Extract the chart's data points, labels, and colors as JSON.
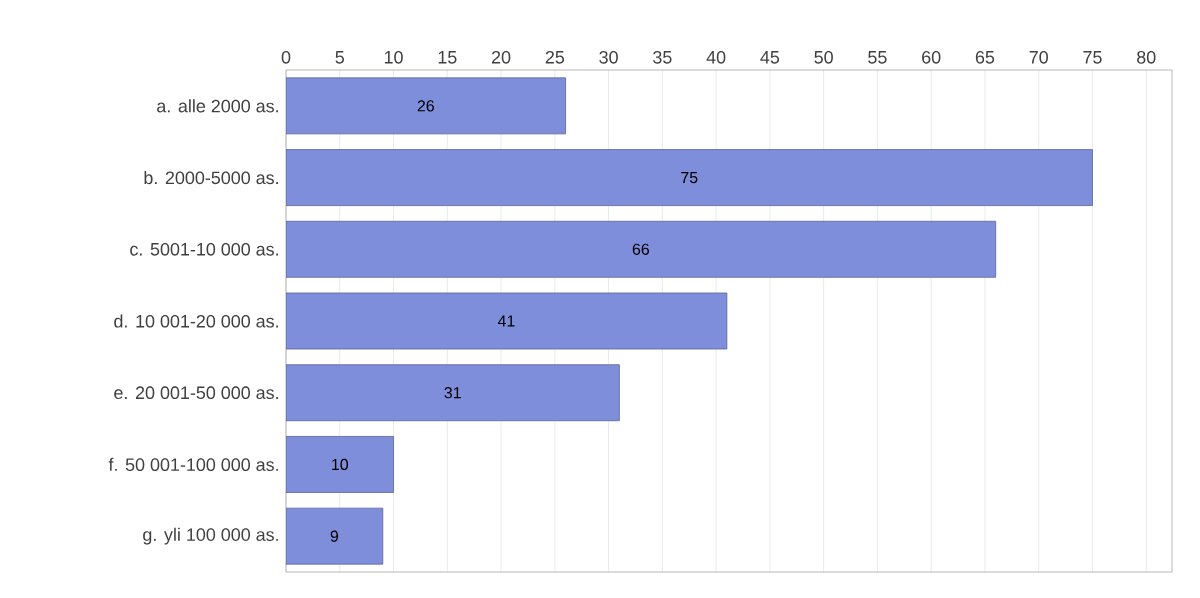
{
  "chart_data": {
    "type": "bar",
    "orientation": "horizontal",
    "categories": [
      "a. alle 2000 as.",
      "b. 2000-5000 as.",
      "c. 5001-10 000 as.",
      "d. 10 001-20 000 as.",
      "e. 20 001-50 000 as.",
      "f. 50 001-100 000 as.",
      "g. yli 100 000 as."
    ],
    "values": [
      26,
      75,
      66,
      41,
      31,
      10,
      9
    ],
    "color": "#7f8edb",
    "xlim": [
      0,
      82.4
    ],
    "xticks": [
      0,
      5,
      10,
      15,
      20,
      25,
      30,
      35,
      40,
      45,
      50,
      55,
      60,
      65,
      70,
      75,
      80
    ],
    "grid": "x",
    "data_labels": true
  }
}
